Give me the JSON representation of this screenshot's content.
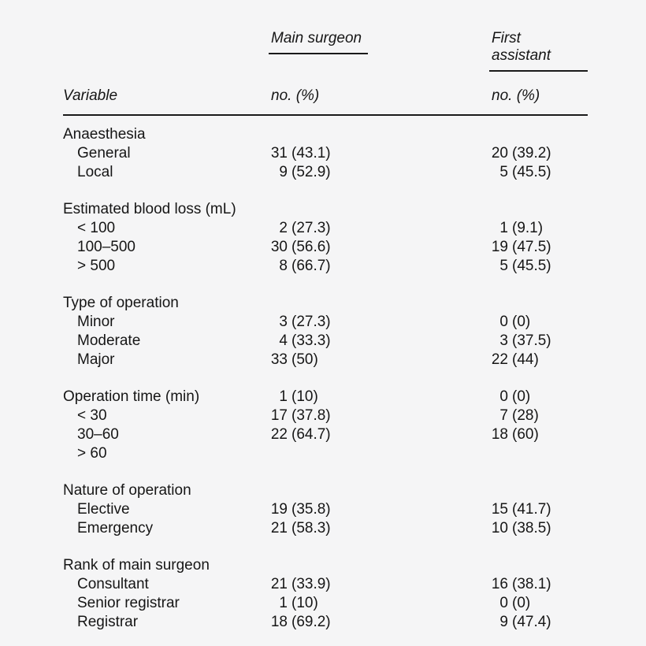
{
  "page": {
    "background_color": "#f5f5f6",
    "text_color": "#161616",
    "rule_color": "#1a1a1a"
  },
  "header": {
    "variable_label": "Variable",
    "col1_title": "Main surgeon",
    "col2_title": "First assistant",
    "col1_subtitle": "no. (%)",
    "col2_subtitle": "no. (%)"
  },
  "table": {
    "sections": [
      {
        "rows": [
          {
            "label": "Anaesthesia",
            "indent": false,
            "c1n": "",
            "c1p": "",
            "c2n": "",
            "c2p": ""
          },
          {
            "label": "General",
            "indent": true,
            "c1n": "31",
            "c1p": "(43.1)",
            "c2n": "20",
            "c2p": "(39.2)"
          },
          {
            "label": "Local",
            "indent": true,
            "c1n": "9",
            "c1p": "(52.9)",
            "c2n": "5",
            "c2p": "(45.5)"
          }
        ]
      },
      {
        "rows": [
          {
            "label": "Estimated blood loss (mL)",
            "indent": false,
            "c1n": "",
            "c1p": "",
            "c2n": "",
            "c2p": ""
          },
          {
            "label": "< 100",
            "indent": true,
            "c1n": "2",
            "c1p": "(27.3)",
            "c2n": "1",
            "c2p": "(9.1)"
          },
          {
            "label": "100–500",
            "indent": true,
            "c1n": "30",
            "c1p": "(56.6)",
            "c2n": "19",
            "c2p": "(47.5)"
          },
          {
            "label": "> 500",
            "indent": true,
            "c1n": "8",
            "c1p": "(66.7)",
            "c2n": "5",
            "c2p": "(45.5)"
          }
        ]
      },
      {
        "rows": [
          {
            "label": "Type of operation",
            "indent": false,
            "c1n": "",
            "c1p": "",
            "c2n": "",
            "c2p": ""
          },
          {
            "label": "Minor",
            "indent": true,
            "c1n": "3",
            "c1p": "(27.3)",
            "c2n": "0",
            "c2p": "(0)"
          },
          {
            "label": "Moderate",
            "indent": true,
            "c1n": "4",
            "c1p": "(33.3)",
            "c2n": "3",
            "c2p": "(37.5)"
          },
          {
            "label": "Major",
            "indent": true,
            "c1n": "33",
            "c1p": "(50)",
            "c2n": "22",
            "c2p": "(44)"
          }
        ]
      },
      {
        "rows": [
          {
            "label": "Operation time (min)",
            "indent": false,
            "c1n": "1",
            "c1p": "(10)",
            "c2n": "0",
            "c2p": "(0)"
          },
          {
            "label": "< 30",
            "indent": true,
            "c1n": "17",
            "c1p": "(37.8)",
            "c2n": "7",
            "c2p": "(28)"
          },
          {
            "label": "30–60",
            "indent": true,
            "c1n": "22",
            "c1p": "(64.7)",
            "c2n": "18",
            "c2p": "(60)"
          },
          {
            "label": "> 60",
            "indent": true,
            "c1n": "",
            "c1p": "",
            "c2n": "",
            "c2p": ""
          }
        ]
      },
      {
        "rows": [
          {
            "label": "Nature of operation",
            "indent": false,
            "c1n": "",
            "c1p": "",
            "c2n": "",
            "c2p": ""
          },
          {
            "label": "Elective",
            "indent": true,
            "c1n": "19",
            "c1p": "(35.8)",
            "c2n": "15",
            "c2p": "(41.7)"
          },
          {
            "label": "Emergency",
            "indent": true,
            "c1n": "21",
            "c1p": "(58.3)",
            "c2n": "10",
            "c2p": "(38.5)"
          }
        ]
      },
      {
        "rows": [
          {
            "label": "Rank of main surgeon",
            "indent": false,
            "c1n": "",
            "c1p": "",
            "c2n": "",
            "c2p": ""
          },
          {
            "label": "Consultant",
            "indent": true,
            "c1n": "21",
            "c1p": "(33.9)",
            "c2n": "16",
            "c2p": "(38.1)"
          },
          {
            "label": "Senior registrar",
            "indent": true,
            "c1n": "1",
            "c1p": "(10)",
            "c2n": "0",
            "c2p": "(0)"
          },
          {
            "label": "Registrar",
            "indent": true,
            "c1n": "18",
            "c1p": "(69.2)",
            "c2n": "9",
            "c2p": "(47.4)"
          }
        ]
      }
    ]
  }
}
